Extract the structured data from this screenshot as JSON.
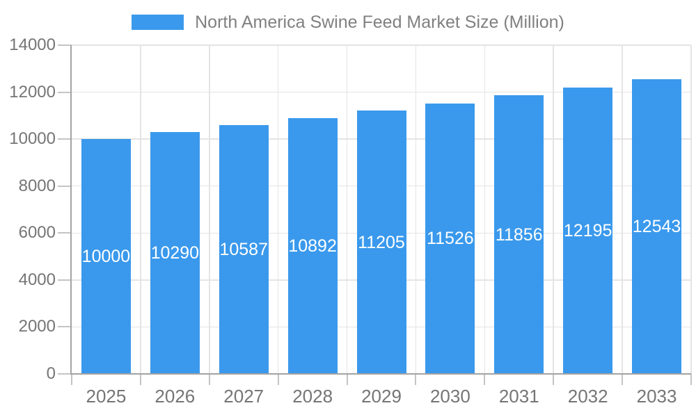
{
  "legend": {
    "label": "North America Swine Feed Market Size (Million)"
  },
  "chart_data": {
    "type": "bar",
    "title": "North America Swine Feed Market Size (Million)",
    "categories": [
      "2025",
      "2026",
      "2027",
      "2028",
      "2029",
      "2030",
      "2031",
      "2032",
      "2033"
    ],
    "values": [
      10000,
      10290,
      10587,
      10892,
      11205,
      11526,
      11856,
      12195,
      12543
    ],
    "series": [
      {
        "name": "North America Swine Feed Market Size (Million)",
        "values": [
          10000,
          10290,
          10587,
          10892,
          11205,
          11526,
          11856,
          12195,
          12543
        ]
      }
    ],
    "xlabel": "",
    "ylabel": "",
    "ylim": [
      0,
      14000
    ],
    "ytick_interval": 2000,
    "yticks": [
      0,
      2000,
      4000,
      6000,
      8000,
      10000,
      12000,
      14000
    ],
    "grid": true,
    "legend_position": "top",
    "value_labels": "centered-in-bar"
  },
  "colors": {
    "bar": "#3A99EC",
    "bar_value_text": "#FFFFFF",
    "axis_line": "#A3A3A3",
    "gridline": "#E4E4E4",
    "tick_mark": "#C4C4C4",
    "axis_label_text": "#757575",
    "legend_text": "#808080",
    "background": "#FFFFFF"
  }
}
